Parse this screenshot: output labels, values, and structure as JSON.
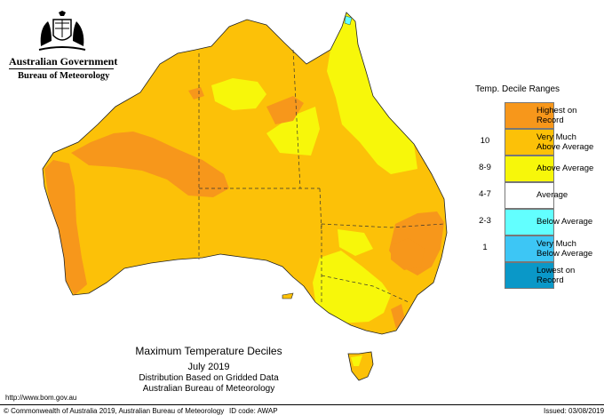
{
  "header": {
    "government": "Australian Government",
    "bureau": "Bureau of Meteorology"
  },
  "legend": {
    "title": "Temp. Decile Ranges",
    "items": [
      {
        "range": "",
        "label_line1": "Highest on",
        "label_line2": "Record",
        "color": "#F7971B"
      },
      {
        "range": "10",
        "label_line1": "Very Much",
        "label_line2": "Above Average",
        "color": "#FCC108"
      },
      {
        "range": "8-9",
        "label_line1": "Above Average",
        "label_line2": "",
        "color": "#F7F70A"
      },
      {
        "range": "4-7",
        "label_line1": "Average",
        "label_line2": "",
        "color": "#FFFFFF"
      },
      {
        "range": "2-3",
        "label_line1": "Below Average",
        "label_line2": "",
        "color": "#62FFFF"
      },
      {
        "range": "1",
        "label_line1": "Very Much",
        "label_line2": "Below Average",
        "color": "#3DC6F5"
      },
      {
        "range": "",
        "label_line1": "Lowest on",
        "label_line2": "Record",
        "color": "#0A98C8"
      }
    ]
  },
  "map_title": {
    "line1": "Maximum Temperature Deciles",
    "line2": "July 2019",
    "line3": "Distribution Based on Gridded Data",
    "line4": "Australian Bureau of Meteorology"
  },
  "footer": {
    "url": "http://www.bom.gov.au",
    "copyright": "© Commonwealth of Australia 2019, Australian Bureau of Meteorology",
    "id_code": "ID code: AWAP",
    "issued": "Issued: 03/08/2019"
  },
  "colors": {
    "record_high": "#F7971B",
    "very_much_above": "#FCC108",
    "above": "#F7F70A",
    "average": "#FFFFFF",
    "below": "#62FFFF"
  }
}
